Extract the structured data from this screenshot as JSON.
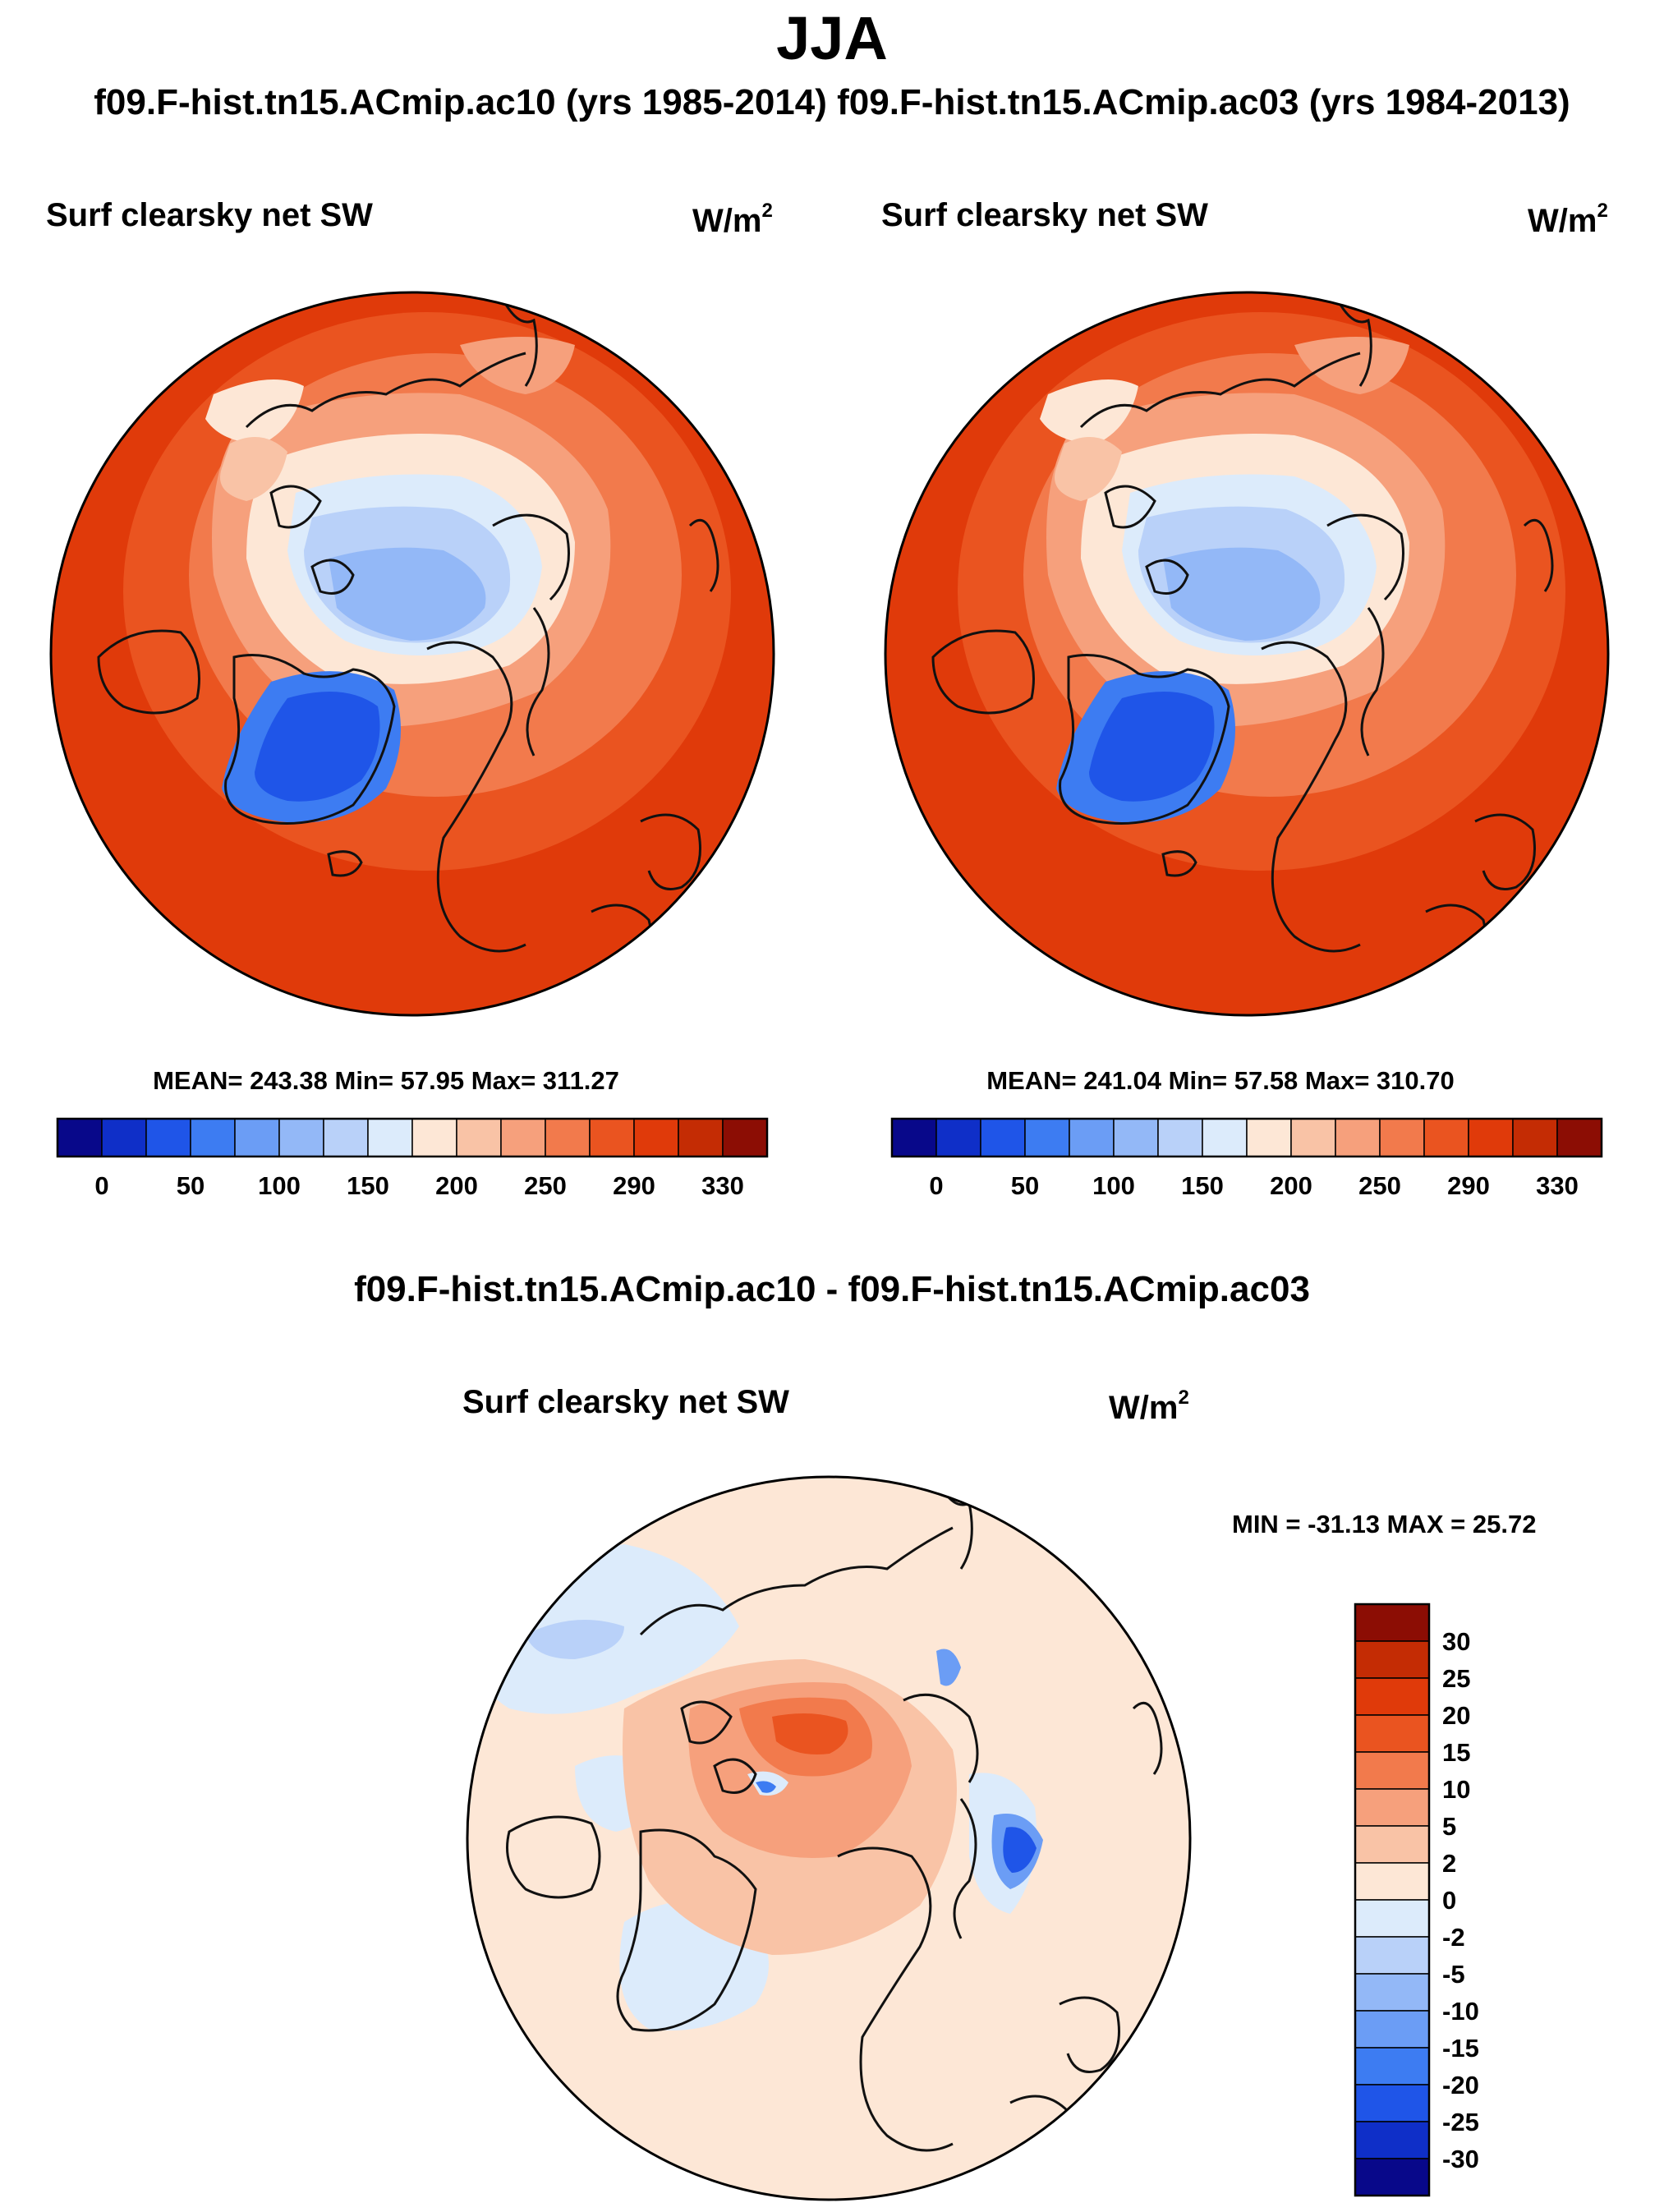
{
  "title": "JJA",
  "run_header": "f09.F-hist.tn15.ACmip.ac10 (yrs 1985-2014) f09.F-hist.tn15.ACmip.ac03 (yrs 1984-2013)",
  "panels": [
    {
      "title": "Surf clearsky net SW",
      "units_base": "W/m",
      "units_exp": "2",
      "stats": "MEAN= 243.38  Min=  57.95  Max= 311.27"
    },
    {
      "title": "Surf clearsky net SW",
      "units_base": "W/m",
      "units_exp": "2",
      "stats": "MEAN= 241.04  Min=  57.58  Max= 310.70"
    }
  ],
  "diff_panel": {
    "title": "f09.F-hist.tn15.ACmip.ac10 - f09.F-hist.tn15.ACmip.ac03",
    "subtitle": "Surf clearsky net SW",
    "units_base": "W/m",
    "units_exp": "2",
    "minmax": "MIN = -31.13 MAX =  25.72"
  },
  "colorbar_main": {
    "colors": [
      "#08088a",
      "#0f2fc8",
      "#1f55e8",
      "#3d7cf2",
      "#6b9df5",
      "#93b8f7",
      "#b9d1f9",
      "#dcebfb",
      "#fde7d6",
      "#f9c3a6",
      "#f6a07c",
      "#f27a4c",
      "#ea5420",
      "#e03a0a",
      "#c42c04",
      "#8c0d04"
    ],
    "labels": [
      "0",
      "50",
      "100",
      "150",
      "200",
      "250",
      "290",
      "330"
    ]
  },
  "colorbar_diff": {
    "colors": [
      "#8c0d04",
      "#c42c04",
      "#e03a0a",
      "#ea5420",
      "#f27a4c",
      "#f6a07c",
      "#f9c3a6",
      "#fde7d6",
      "#dcebfb",
      "#b9d1f9",
      "#93b8f7",
      "#6b9df5",
      "#3d7cf2",
      "#1f55e8",
      "#0f2fc8",
      "#08088a"
    ],
    "labels": [
      "30",
      "25",
      "20",
      "15",
      "10",
      "5",
      "2",
      "0",
      "-2",
      "-5",
      "-10",
      "-15",
      "-20",
      "-25",
      "-30"
    ]
  }
}
